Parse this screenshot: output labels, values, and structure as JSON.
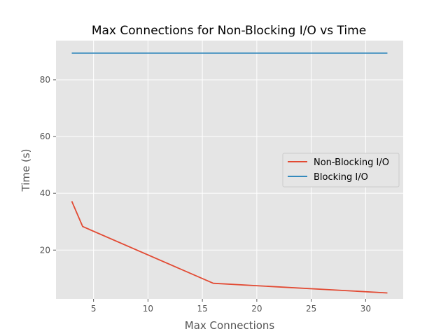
{
  "chart_data": {
    "type": "line",
    "title": "Max Connections for Non-Blocking I/O vs Time",
    "xlabel": "Max Connections",
    "ylabel": "Time (s)",
    "xlim": [
      1.55,
      33.45
    ],
    "ylim": [
      2.8,
      93.8
    ],
    "x_ticks": [
      5,
      10,
      15,
      20,
      25,
      30
    ],
    "y_ticks": [
      20,
      40,
      60,
      80
    ],
    "grid": true,
    "legend_position": "center-right",
    "series": [
      {
        "name": "Non-Blocking I/O",
        "color": "#e24a33",
        "x": [
          3,
          4,
          16,
          32
        ],
        "y": [
          37.2,
          28.3,
          8.3,
          4.9
        ]
      },
      {
        "name": "Blocking I/O",
        "color": "#348abd",
        "x": [
          3,
          32
        ],
        "y": [
          89.4,
          89.4
        ]
      }
    ]
  }
}
